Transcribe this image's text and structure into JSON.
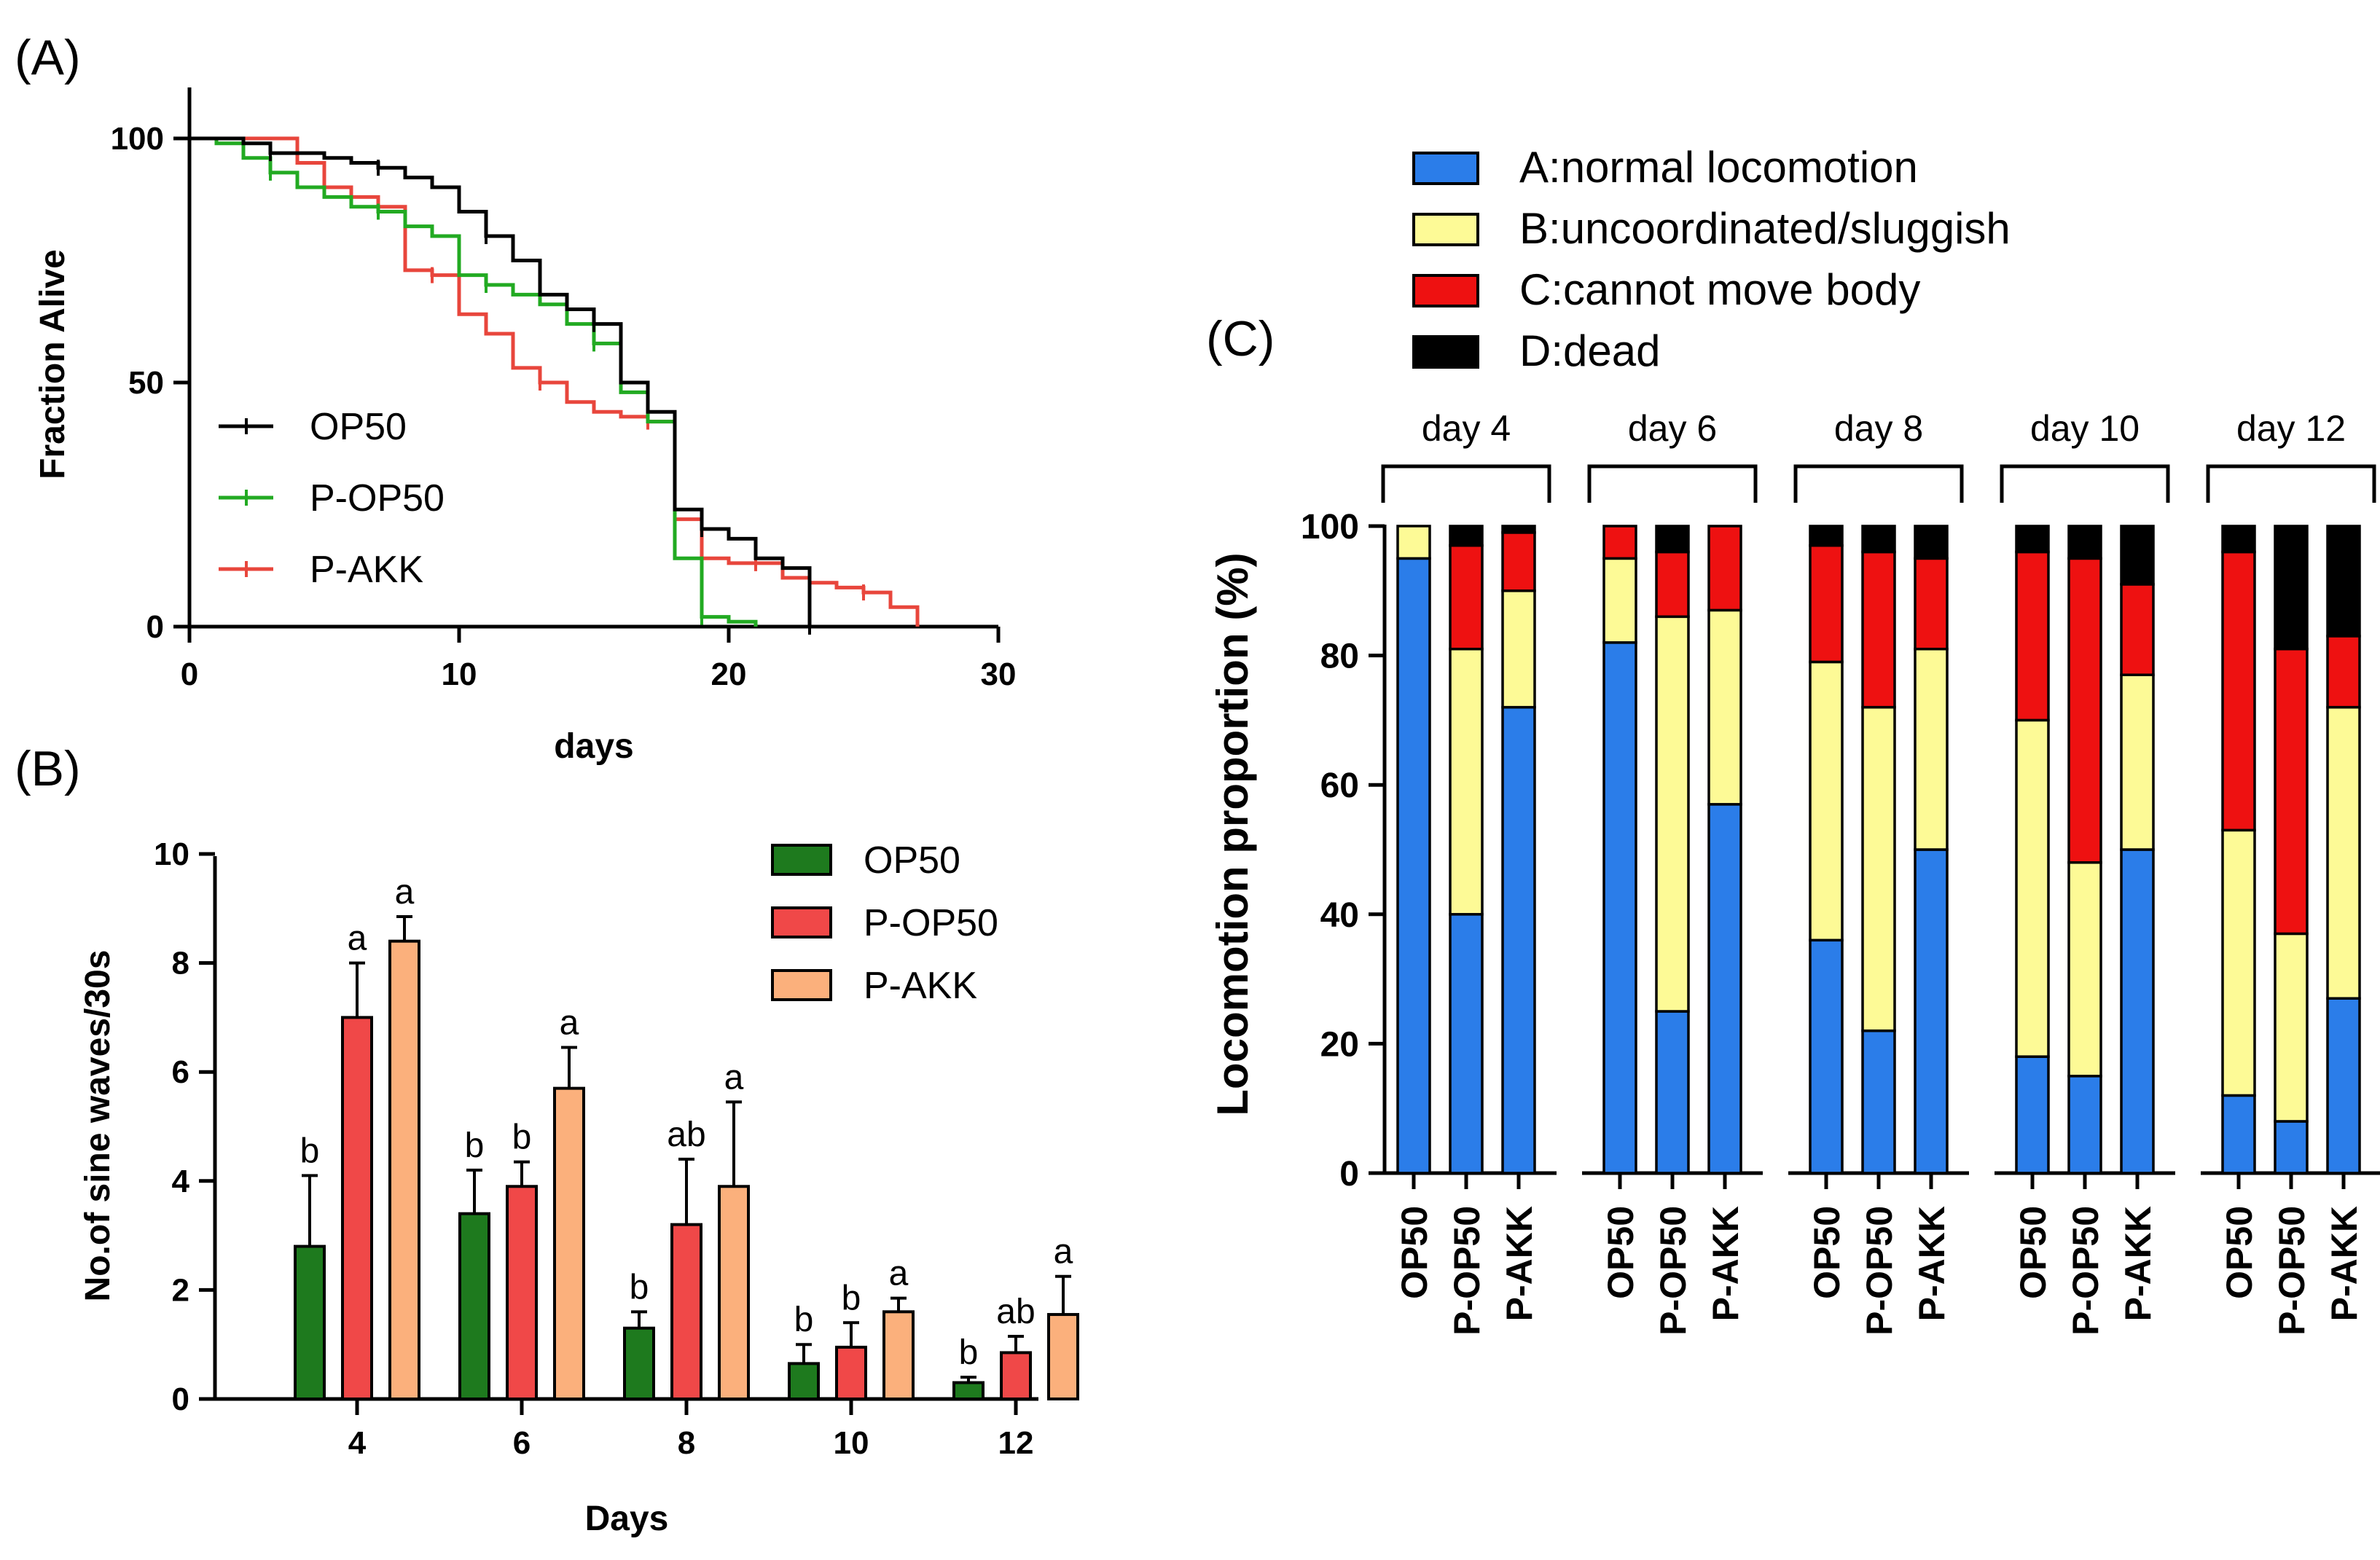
{
  "chart_data": [
    {
      "panel": "(A)",
      "type": "line",
      "subtype": "survival-step",
      "xlabel": "days",
      "ylabel": "Fraction Alive",
      "xlim": [
        0,
        30
      ],
      "ylim": [
        0,
        100
      ],
      "xticks": [
        "0",
        "10",
        "20",
        "30"
      ],
      "yticks": [
        "0",
        "50",
        "100"
      ],
      "series": [
        {
          "name": "OP50",
          "color": "#000000",
          "x": [
            0,
            1,
            2,
            3,
            4,
            5,
            6,
            7,
            8,
            9,
            10,
            11,
            12,
            13,
            14,
            15,
            16,
            17,
            18,
            19,
            20,
            21,
            22,
            23
          ],
          "y": [
            100,
            100,
            99,
            97,
            97,
            96,
            95,
            94,
            92,
            90,
            85,
            80,
            75,
            68,
            65,
            62,
            50,
            44,
            24,
            20,
            18,
            14,
            12,
            0
          ]
        },
        {
          "name": "P-OP50",
          "color": "#22aa22",
          "x": [
            0,
            1,
            2,
            3,
            4,
            5,
            6,
            7,
            8,
            9,
            10,
            11,
            12,
            13,
            14,
            15,
            16,
            17,
            18,
            19,
            20,
            21
          ],
          "y": [
            100,
            99,
            96,
            93,
            90,
            88,
            86,
            85,
            82,
            80,
            72,
            70,
            68,
            66,
            62,
            58,
            48,
            42,
            14,
            2,
            1,
            0
          ]
        },
        {
          "name": "P-AKK",
          "color": "#e8463c",
          "x": [
            0,
            2,
            4,
            5,
            6,
            7,
            8,
            9,
            10,
            11,
            12,
            13,
            14,
            15,
            16,
            17,
            18,
            19,
            20,
            21,
            22,
            23,
            24,
            25,
            26,
            27
          ],
          "y": [
            100,
            100,
            95,
            90,
            88,
            86,
            73,
            72,
            64,
            60,
            53,
            50,
            46,
            44,
            43,
            42,
            22,
            14,
            13,
            13,
            10,
            9,
            8,
            7,
            4,
            0
          ]
        }
      ]
    },
    {
      "panel": "(B)",
      "type": "bar",
      "xlabel": "Days",
      "ylabel": "No.of sine waves/30s",
      "ylim": [
        0,
        10
      ],
      "yticks": [
        "0",
        "2",
        "4",
        "6",
        "8",
        "10"
      ],
      "categories": [
        "4",
        "6",
        "8",
        "10",
        "12"
      ],
      "series": [
        {
          "name": "OP50",
          "color": "#1e7a1e",
          "values": [
            2.8,
            3.4,
            1.3,
            0.65,
            0.3
          ],
          "errors": [
            1.3,
            0.8,
            0.3,
            0.35,
            0.1
          ],
          "letters": [
            "b",
            "b",
            "b",
            "b",
            "b"
          ]
        },
        {
          "name": "P-OP50",
          "color": "#f04848",
          "values": [
            7.0,
            3.9,
            3.2,
            0.95,
            0.85
          ],
          "errors": [
            1.0,
            0.45,
            1.2,
            0.45,
            0.3
          ],
          "letters": [
            "a",
            "b",
            "ab",
            "b",
            "ab"
          ]
        },
        {
          "name": "P-AKK",
          "color": "#fbb07c",
          "values": [
            8.4,
            5.7,
            3.9,
            1.6,
            1.55
          ],
          "errors": [
            0.45,
            0.75,
            1.55,
            0.25,
            0.7
          ],
          "letters": [
            "a",
            "a",
            "a",
            "a",
            "a"
          ]
        }
      ]
    },
    {
      "panel": "(C)",
      "type": "bar",
      "subtype": "stacked-percent",
      "ylabel": "Locomotion proportion (%)",
      "ylim": [
        0,
        100
      ],
      "yticks": [
        "0",
        "20",
        "40",
        "60",
        "80",
        "100"
      ],
      "groups": [
        "day 4",
        "day 6",
        "day 8",
        "day 10",
        "day 12"
      ],
      "categories": [
        "OP50",
        "P-OP50",
        "P-AKK"
      ],
      "legend": [
        {
          "name": "A:normal locomotion",
          "color": "#2b7de9"
        },
        {
          "name": "B:uncoordinated/sluggish",
          "color": "#fdfa96"
        },
        {
          "name": "C:cannot move body",
          "color": "#ee1111"
        },
        {
          "name": "D:dead",
          "color": "#000000"
        }
      ],
      "series": [
        {
          "name": "A:normal locomotion",
          "values": [
            [
              95,
              40,
              72
            ],
            [
              82,
              25,
              57
            ],
            [
              36,
              22,
              50
            ],
            [
              18,
              15,
              50
            ],
            [
              12,
              8,
              27
            ]
          ]
        },
        {
          "name": "B:uncoordinated/sluggish",
          "values": [
            [
              5,
              41,
              18
            ],
            [
              13,
              61,
              30
            ],
            [
              43,
              50,
              31
            ],
            [
              52,
              33,
              27
            ],
            [
              41,
              29,
              45
            ]
          ]
        },
        {
          "name": "C:cannot move body",
          "values": [
            [
              0,
              16,
              9
            ],
            [
              5,
              10,
              13
            ],
            [
              18,
              24,
              14
            ],
            [
              26,
              47,
              14
            ],
            [
              43,
              44,
              11
            ]
          ]
        },
        {
          "name": "D:dead",
          "values": [
            [
              0,
              3,
              1
            ],
            [
              0,
              4,
              0
            ],
            [
              3,
              4,
              5
            ],
            [
              4,
              5,
              9
            ],
            [
              4,
              19,
              17
            ]
          ]
        }
      ]
    }
  ]
}
